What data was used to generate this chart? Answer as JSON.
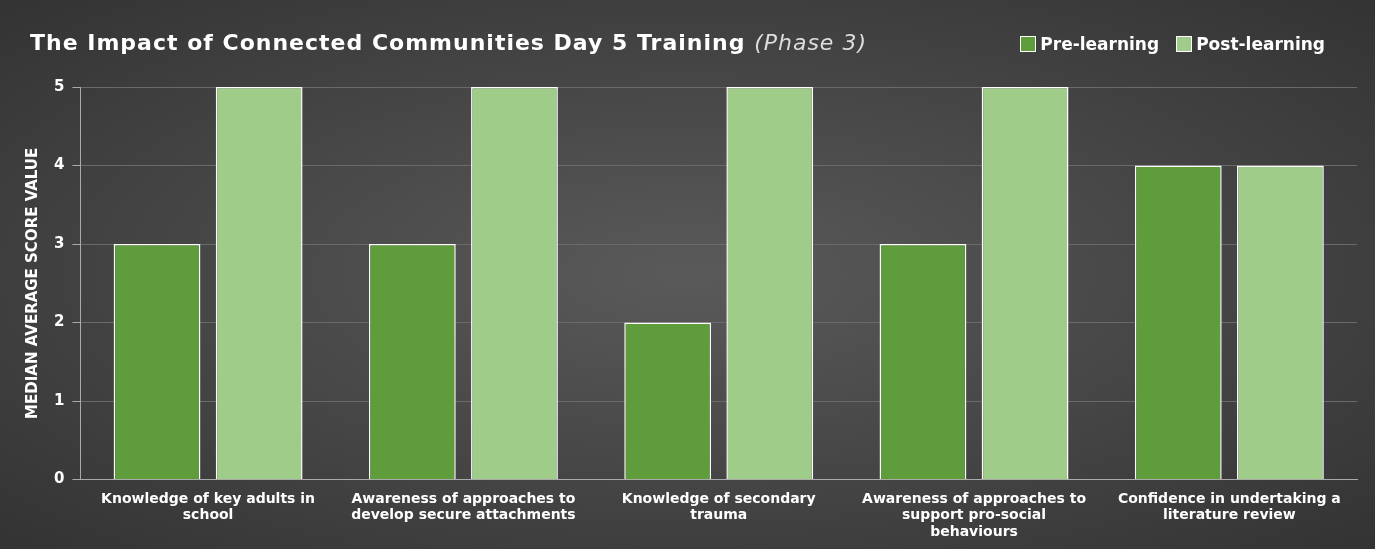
{
  "chart_data": {
    "type": "bar",
    "title": "The Impact of Connected Communities Day 5 Training",
    "subtitle": "(Phase 3)",
    "ylabel": "MEDIAN AVERAGE SCORE VALUE",
    "categories": [
      "Knowledge of key adults in school",
      "Awareness of approaches to develop secure attachments",
      "Knowledge of secondary trauma",
      "Awareness of approaches to support pro-social behaviours",
      "Confidence in undertaking a literature review"
    ],
    "series": [
      {
        "name": "Pre-learning",
        "color": "#5e9c3c",
        "values": [
          3,
          3,
          2,
          3,
          4
        ]
      },
      {
        "name": "Post-learning",
        "color": "#a0cc8a",
        "values": [
          5,
          5,
          5,
          5,
          4
        ]
      }
    ],
    "ylim": [
      0,
      5
    ],
    "yticks": [
      0,
      1,
      2,
      3,
      4,
      5
    ],
    "grid": "y",
    "legend": "top right"
  }
}
